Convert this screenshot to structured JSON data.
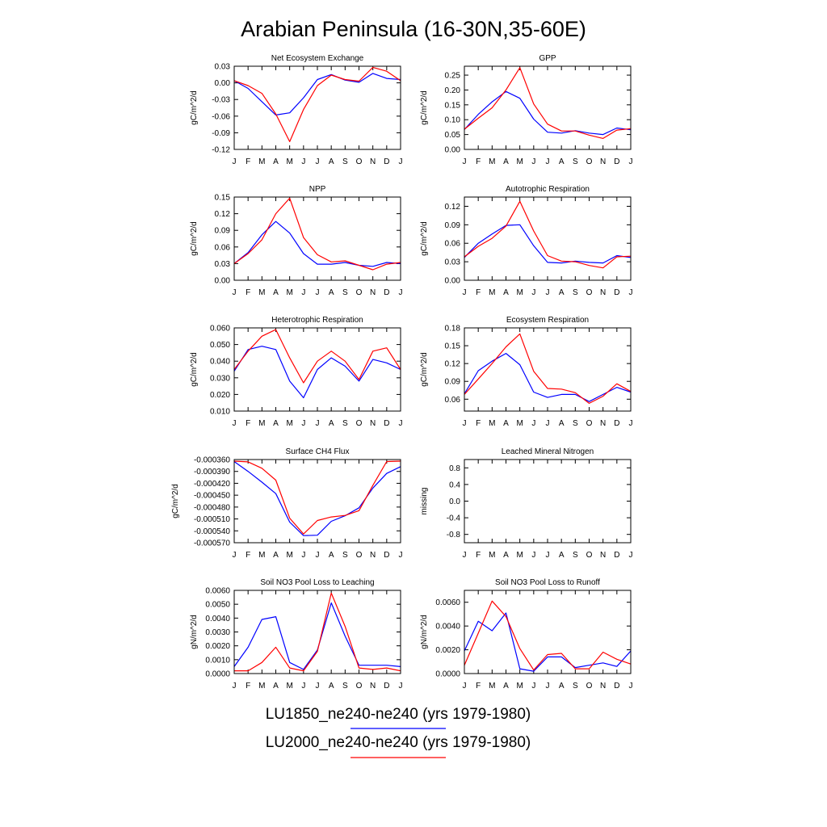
{
  "page": {
    "title": "Arabian Peninsula (16-30N,35-60E)"
  },
  "months": [
    "J",
    "F",
    "M",
    "A",
    "M",
    "J",
    "J",
    "A",
    "S",
    "O",
    "N",
    "D",
    "J"
  ],
  "colors": {
    "LU1850": "#0000ff",
    "LU2000": "#ff0000"
  },
  "legend": [
    {
      "label": "LU1850_ne240-ne240 (yrs 1979-1980)",
      "color": "#0000ff"
    },
    {
      "label": "LU2000_ne240-ne240 (yrs 1979-1980)",
      "color": "#ff0000"
    }
  ],
  "chart_data": [
    {
      "type": "line",
      "title": "Net Ecosystem Exchange",
      "ylabel": "gC/m^2/d",
      "ylim": [
        -0.12,
        0.03
      ],
      "yticks": [
        "0.03",
        "0.00",
        "-0.03",
        "-0.06",
        "-0.09",
        "-0.12"
      ],
      "yvals": [
        0.03,
        0.0,
        -0.03,
        -0.06,
        -0.09,
        -0.12
      ],
      "series": [
        {
          "key": "LU1850",
          "values": [
            0.004,
            -0.01,
            -0.034,
            -0.058,
            -0.054,
            -0.027,
            0.006,
            0.015,
            0.005,
            0.001,
            0.017,
            0.008,
            0.006
          ]
        },
        {
          "key": "LU2000",
          "values": [
            0.004,
            -0.005,
            -0.019,
            -0.056,
            -0.106,
            -0.048,
            -0.005,
            0.014,
            0.006,
            0.003,
            0.028,
            0.021,
            0.004
          ]
        }
      ]
    },
    {
      "type": "line",
      "title": "GPP",
      "ylabel": "gC/m^2/d",
      "ylim": [
        0.0,
        0.28
      ],
      "yticks": [
        "0.25",
        "0.20",
        "0.15",
        "0.10",
        "0.05",
        "0.00"
      ],
      "yvals": [
        0.25,
        0.2,
        0.15,
        0.1,
        0.05,
        0.0
      ],
      "series": [
        {
          "key": "LU1850",
          "values": [
            0.067,
            0.118,
            0.16,
            0.195,
            0.172,
            0.102,
            0.058,
            0.055,
            0.063,
            0.055,
            0.05,
            0.072,
            0.066
          ]
        },
        {
          "key": "LU2000",
          "values": [
            0.068,
            0.105,
            0.14,
            0.2,
            0.275,
            0.153,
            0.085,
            0.062,
            0.062,
            0.048,
            0.037,
            0.065,
            0.07
          ]
        }
      ]
    },
    {
      "type": "line",
      "title": "NPP",
      "ylabel": "gC/m^2/d",
      "ylim": [
        0.0,
        0.15
      ],
      "yticks": [
        "0.15",
        "0.12",
        "0.09",
        "0.06",
        "0.03",
        "0.00"
      ],
      "yvals": [
        0.15,
        0.12,
        0.09,
        0.06,
        0.03,
        0.0
      ],
      "series": [
        {
          "key": "LU1850",
          "values": [
            0.03,
            0.05,
            0.082,
            0.106,
            0.085,
            0.048,
            0.029,
            0.029,
            0.032,
            0.027,
            0.025,
            0.032,
            0.03
          ]
        },
        {
          "key": "LU2000",
          "values": [
            0.03,
            0.048,
            0.073,
            0.12,
            0.148,
            0.077,
            0.046,
            0.033,
            0.035,
            0.027,
            0.019,
            0.029,
            0.032
          ]
        }
      ]
    },
    {
      "type": "line",
      "title": "Autotrophic Respiration",
      "ylabel": "gC/m^2/d",
      "ylim": [
        0.0,
        0.135
      ],
      "yticks": [
        "0.12",
        "0.09",
        "0.06",
        "0.03",
        "0.00"
      ],
      "yvals": [
        0.12,
        0.09,
        0.06,
        0.03,
        0.0
      ],
      "series": [
        {
          "key": "LU1850",
          "values": [
            0.037,
            0.06,
            0.075,
            0.089,
            0.09,
            0.056,
            0.029,
            0.028,
            0.031,
            0.029,
            0.028,
            0.04,
            0.037
          ]
        },
        {
          "key": "LU2000",
          "values": [
            0.038,
            0.055,
            0.068,
            0.088,
            0.128,
            0.08,
            0.04,
            0.031,
            0.03,
            0.024,
            0.02,
            0.038,
            0.039
          ]
        }
      ]
    },
    {
      "type": "line",
      "title": "Heterotrophic Respiration",
      "ylabel": "gC/m^2/d",
      "ylim": [
        0.01,
        0.06
      ],
      "yticks": [
        "0.060",
        "0.050",
        "0.040",
        "0.030",
        "0.020",
        "0.010"
      ],
      "yvals": [
        0.06,
        0.05,
        0.04,
        0.03,
        0.02,
        0.01
      ],
      "series": [
        {
          "key": "LU1850",
          "values": [
            0.034,
            0.047,
            0.049,
            0.047,
            0.028,
            0.018,
            0.035,
            0.042,
            0.037,
            0.028,
            0.041,
            0.039,
            0.035
          ]
        },
        {
          "key": "LU2000",
          "values": [
            0.035,
            0.046,
            0.055,
            0.059,
            0.042,
            0.027,
            0.04,
            0.046,
            0.04,
            0.029,
            0.046,
            0.048,
            0.035
          ]
        }
      ]
    },
    {
      "type": "line",
      "title": "Ecosystem Respiration",
      "ylabel": "gC/m^2/d",
      "ylim": [
        0.04,
        0.18
      ],
      "yticks": [
        "0.18",
        "0.15",
        "0.12",
        "0.09",
        "0.06"
      ],
      "yvals": [
        0.18,
        0.15,
        0.12,
        0.09,
        0.06
      ],
      "series": [
        {
          "key": "LU1850",
          "values": [
            0.069,
            0.108,
            0.124,
            0.137,
            0.118,
            0.072,
            0.063,
            0.068,
            0.068,
            0.056,
            0.068,
            0.08,
            0.072
          ]
        },
        {
          "key": "LU2000",
          "values": [
            0.068,
            0.094,
            0.12,
            0.148,
            0.17,
            0.107,
            0.078,
            0.077,
            0.071,
            0.053,
            0.065,
            0.086,
            0.073
          ]
        }
      ]
    },
    {
      "type": "line",
      "title": "Surface CH4 Flux",
      "ylabel": "gC/m^2/d",
      "ylim": [
        -0.00057,
        -0.00036
      ],
      "yticks": [
        "-0.000360",
        "-0.000390",
        "-0.000420",
        "-0.000450",
        "-0.000480",
        "-0.000510",
        "-0.000540",
        "-0.000570"
      ],
      "yvals": [
        -0.00036,
        -0.00039,
        -0.00042,
        -0.00045,
        -0.00048,
        -0.00051,
        -0.00054,
        -0.00057
      ],
      "series": [
        {
          "key": "LU1850",
          "values": [
            -0.000365,
            -0.00039,
            -0.000417,
            -0.000446,
            -0.000518,
            -0.000552,
            -0.000551,
            -0.000516,
            -0.000502,
            -0.000482,
            -0.000432,
            -0.000395,
            -0.000378
          ]
        },
        {
          "key": "LU2000",
          "values": [
            -0.000364,
            -0.000366,
            -0.000382,
            -0.000412,
            -0.000508,
            -0.000548,
            -0.000514,
            -0.000505,
            -0.000501,
            -0.000489,
            -0.000425,
            -0.000365,
            -0.000364
          ]
        }
      ]
    },
    {
      "type": "line",
      "title": "Leached Mineral Nitrogen",
      "ylabel": "missing",
      "ylim": [
        -1.0,
        1.0
      ],
      "yticks": [
        "0.8",
        "0.4",
        "0.0",
        "-0.4",
        "-0.8"
      ],
      "yvals": [
        0.8,
        0.4,
        0.0,
        -0.4,
        -0.8
      ],
      "series": []
    },
    {
      "type": "line",
      "title": "Soil NO3 Pool Loss to Leaching",
      "ylabel": "gN/m^2/d",
      "ylim": [
        0.0,
        0.006
      ],
      "yticks": [
        "0.0060",
        "0.0050",
        "0.0040",
        "0.0030",
        "0.0020",
        "0.0010",
        "0.0000"
      ],
      "yvals": [
        0.006,
        0.005,
        0.004,
        0.003,
        0.002,
        0.001,
        0.0
      ],
      "series": [
        {
          "key": "LU1850",
          "values": [
            0.0005,
            0.0019,
            0.0039,
            0.0041,
            0.0008,
            0.0003,
            0.0017,
            0.0051,
            0.0027,
            0.0006,
            0.0006,
            0.0006,
            0.0005
          ]
        },
        {
          "key": "LU2000",
          "values": [
            0.0002,
            0.0002,
            0.0008,
            0.0019,
            0.0004,
            0.0002,
            0.0016,
            0.0058,
            0.0034,
            0.0004,
            0.0003,
            0.0004,
            0.0002
          ]
        }
      ]
    },
    {
      "type": "line",
      "title": "Soil NO3 Pool Loss to Runoff",
      "ylabel": "gN/m^2/d",
      "ylim": [
        0.0,
        0.007
      ],
      "yticks": [
        "0.0060",
        "0.0040",
        "0.0020",
        "0.0000"
      ],
      "yvals": [
        0.006,
        0.004,
        0.002,
        0.0
      ],
      "series": [
        {
          "key": "LU1850",
          "values": [
            0.0019,
            0.0044,
            0.0036,
            0.0051,
            0.0004,
            0.0002,
            0.0014,
            0.0014,
            0.0005,
            0.0007,
            0.0009,
            0.0006,
            0.0019
          ]
        },
        {
          "key": "LU2000",
          "values": [
            0.0007,
            0.0034,
            0.0061,
            0.0048,
            0.0021,
            0.0003,
            0.0016,
            0.0017,
            0.0004,
            0.0004,
            0.0018,
            0.0012,
            0.0008
          ]
        }
      ]
    }
  ]
}
